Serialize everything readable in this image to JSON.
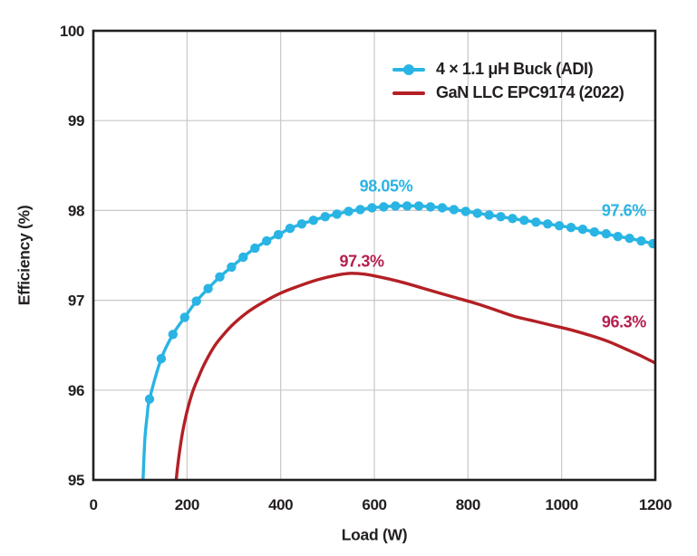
{
  "chart_data": {
    "type": "line",
    "title": "",
    "xlabel": "Load (W)",
    "ylabel": "Efficiency (%)",
    "xlim": [
      0,
      1200
    ],
    "ylim": [
      95,
      100
    ],
    "x_ticks": [
      0,
      200,
      400,
      600,
      800,
      1000,
      1200
    ],
    "y_ticks": [
      95,
      96,
      97,
      98,
      99,
      100
    ],
    "grid": true,
    "legend_position": "top-right-inside",
    "colors": {
      "axis": "#231f20",
      "grid": "#c8c8c8",
      "background": "#ffffff",
      "buck": "#29b4e4",
      "gan": "#b32025",
      "buck_label": "#29b4e4",
      "gan_label": "#b51f4d"
    },
    "series": [
      {
        "name": "4 × 1.1 μH Buck (ADI)",
        "color": "#29b4e4",
        "marker": "circle",
        "lead_points": [
          [
            103,
            94.55
          ],
          [
            106,
            95.0
          ],
          [
            110,
            95.45
          ],
          [
            115,
            95.72
          ]
        ],
        "points": [
          [
            120,
            95.9
          ],
          [
            145,
            96.35
          ],
          [
            170,
            96.62
          ],
          [
            195,
            96.81
          ],
          [
            220,
            96.99
          ],
          [
            245,
            97.13
          ],
          [
            270,
            97.26
          ],
          [
            295,
            97.37
          ],
          [
            320,
            97.48
          ],
          [
            345,
            97.58
          ],
          [
            370,
            97.66
          ],
          [
            395,
            97.73
          ],
          [
            420,
            97.8
          ],
          [
            445,
            97.85
          ],
          [
            470,
            97.89
          ],
          [
            495,
            97.93
          ],
          [
            520,
            97.96
          ],
          [
            545,
            97.99
          ],
          [
            570,
            98.01
          ],
          [
            595,
            98.03
          ],
          [
            620,
            98.04
          ],
          [
            645,
            98.05
          ],
          [
            670,
            98.05
          ],
          [
            695,
            98.05
          ],
          [
            720,
            98.04
          ],
          [
            745,
            98.03
          ],
          [
            770,
            98.01
          ],
          [
            795,
            97.99
          ],
          [
            820,
            97.97
          ],
          [
            845,
            97.95
          ],
          [
            870,
            97.93
          ],
          [
            895,
            97.91
          ],
          [
            920,
            97.89
          ],
          [
            945,
            97.87
          ],
          [
            970,
            97.85
          ],
          [
            995,
            97.83
          ],
          [
            1020,
            97.81
          ],
          [
            1045,
            97.79
          ],
          [
            1070,
            97.76
          ],
          [
            1095,
            97.74
          ],
          [
            1120,
            97.71
          ],
          [
            1145,
            97.69
          ],
          [
            1170,
            97.66
          ],
          [
            1195,
            97.63
          ]
        ]
      },
      {
        "name": "GaN LLC EPC9174 (2022)",
        "color": "#b32025",
        "marker": "none",
        "lead_points": [],
        "points": [
          [
            172,
            94.6
          ],
          [
            177,
            95.0
          ],
          [
            185,
            95.35
          ],
          [
            195,
            95.65
          ],
          [
            210,
            95.95
          ],
          [
            225,
            96.15
          ],
          [
            240,
            96.32
          ],
          [
            260,
            96.5
          ],
          [
            280,
            96.63
          ],
          [
            300,
            96.74
          ],
          [
            330,
            96.87
          ],
          [
            360,
            96.97
          ],
          [
            400,
            97.08
          ],
          [
            440,
            97.16
          ],
          [
            480,
            97.23
          ],
          [
            520,
            97.28
          ],
          [
            550,
            97.3
          ],
          [
            580,
            97.29
          ],
          [
            620,
            97.25
          ],
          [
            660,
            97.2
          ],
          [
            700,
            97.14
          ],
          [
            740,
            97.08
          ],
          [
            780,
            97.02
          ],
          [
            820,
            96.96
          ],
          [
            860,
            96.89
          ],
          [
            900,
            96.82
          ],
          [
            940,
            96.77
          ],
          [
            980,
            96.72
          ],
          [
            1020,
            96.67
          ],
          [
            1060,
            96.61
          ],
          [
            1100,
            96.54
          ],
          [
            1140,
            96.45
          ],
          [
            1170,
            96.38
          ],
          [
            1200,
            96.3
          ]
        ]
      }
    ],
    "annotations": [
      {
        "text": "98.05%",
        "x": 625,
        "y": 98.27,
        "color_key": "buck_label"
      },
      {
        "text": "97.6%",
        "x": 1133,
        "y": 97.99,
        "color_key": "buck_label"
      },
      {
        "text": "97.3%",
        "x": 573,
        "y": 97.43,
        "color_key": "gan_label"
      },
      {
        "text": "96.3%",
        "x": 1133,
        "y": 96.75,
        "color_key": "gan_label"
      }
    ]
  }
}
